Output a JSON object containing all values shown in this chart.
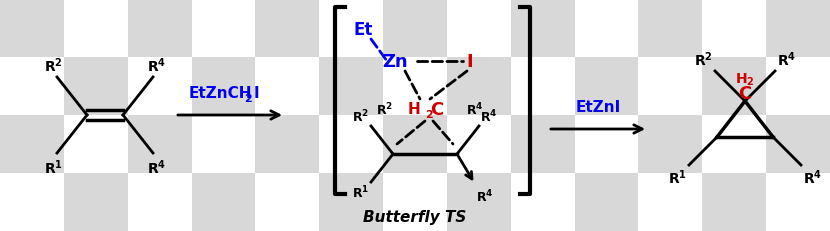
{
  "checker_light": "#d8d8d8",
  "checker_white": "#ffffff",
  "black": "#000000",
  "blue": "#0000ee",
  "red": "#cc0000",
  "figsize": [
    8.3,
    2.32
  ],
  "dpi": 100,
  "checker_cols": 13,
  "checker_rows": 4,
  "arrow1_label": "EtZnCH",
  "arrow1_sub": "2",
  "arrow1_end": "I",
  "arrow2_label": "EtZnI",
  "ts_label": "Butterfly TS",
  "et_label": "Et",
  "zn_label": "Zn",
  "i_label": "I",
  "h2c_label": "H",
  "h2c_sub": "2",
  "h2c_c": "C"
}
